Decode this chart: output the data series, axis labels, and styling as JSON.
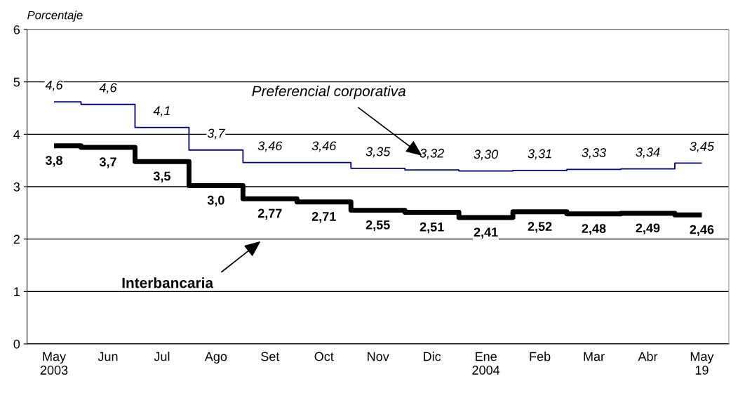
{
  "chart_data": {
    "type": "step",
    "ylabel": "Porcentaje",
    "categories": [
      "May\n2003",
      "Jun",
      "Jul",
      "Ago",
      "Set",
      "Oct",
      "Nov",
      "Dic",
      "Ene\n2004",
      "Feb",
      "Mar",
      "Abr",
      "May\n19"
    ],
    "series": [
      {
        "color": "#000080",
        "values": [
          4.62,
          4.57,
          4.13,
          3.7,
          3.46,
          3.46,
          3.35,
          3.32,
          3.3,
          3.31,
          3.33,
          3.34,
          3.45
        ],
        "value_labels": [
          "4,6",
          "4,6",
          "4,1",
          "3,7",
          "3,46",
          "3,46",
          "3,35",
          "3,32",
          "3,30",
          "3,31",
          "3,33",
          "3,34",
          "3,45"
        ]
      },
      {
        "color": "#000000",
        "values": [
          3.78,
          3.75,
          3.48,
          3.02,
          2.77,
          2.71,
          2.55,
          2.51,
          2.41,
          2.52,
          2.48,
          2.49,
          2.46
        ],
        "value_labels": [
          "3,8",
          "3,7",
          "3,5",
          "3,0",
          "2,77",
          "2,71",
          "2,55",
          "2,51",
          "2,41",
          "2,52",
          "2,48",
          "2,49",
          "2,46"
        ]
      }
    ],
    "annotations": [
      "Preferencial corporativa",
      "Interbancaria"
    ],
    "ylim": [
      0,
      6
    ],
    "yticks": [
      0,
      1,
      2,
      3,
      4,
      5,
      6
    ],
    "grid": "y",
    "legend": false
  }
}
